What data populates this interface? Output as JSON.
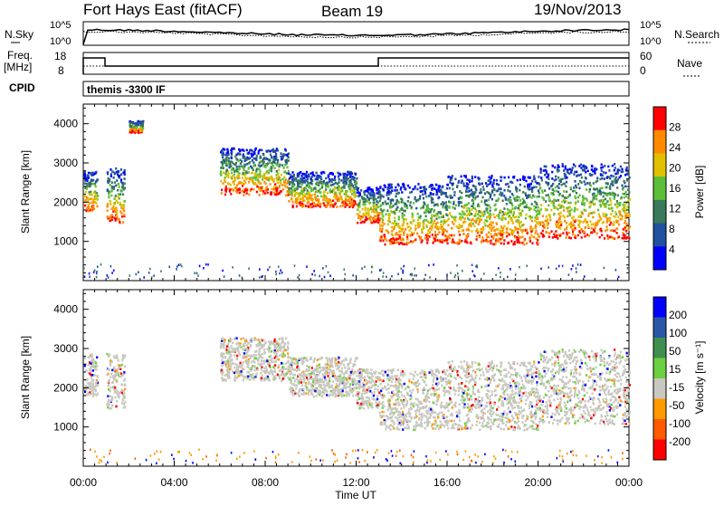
{
  "header": {
    "station": "Fort Hays East (fitACF)",
    "beam": "Beam 19",
    "date": "19/Nov/2013"
  },
  "noise_panel": {
    "left_label": "N.Sky",
    "right_label": "N.Search",
    "left_ticks": [
      "10^5",
      "10^0"
    ],
    "right_ticks": [
      "10^5",
      "10^0"
    ]
  },
  "freq_panel": {
    "left_label_1": "Freq.",
    "left_label_2": "[MHz]",
    "right_label": "Nave",
    "left_ticks": [
      "18",
      "8"
    ],
    "right_ticks": [
      "60",
      "0"
    ]
  },
  "cpid_panel": {
    "label": "CPID",
    "value": "themis -3300 IF"
  },
  "power_panel": {
    "ylabel": "Slant Range [km]",
    "colorbar_label": "Power [dB]",
    "colorbar_ticks": [
      "28",
      "24",
      "20",
      "16",
      "12",
      "8",
      "4"
    ],
    "colors": [
      "#0000ff",
      "#2050a0",
      "#3a7a5a",
      "#5cbf3a",
      "#e0c000",
      "#ff8a00",
      "#ff0000"
    ]
  },
  "velocity_panel": {
    "ylabel": "Slant Range [km]",
    "colorbar_label": "Velocity [m s⁻¹]",
    "colorbar_ticks": [
      "200",
      "100",
      "50",
      "15",
      "-15",
      "-50",
      "-100",
      "-200"
    ],
    "colors": [
      "#0000ff",
      "#2a56a8",
      "#3f8f4f",
      "#6cd040",
      "#c8c8c0",
      "#ff9a00",
      "#ff5a00",
      "#ff0000"
    ]
  },
  "x_axis": {
    "label": "Time UT",
    "ticks": [
      "00:00",
      "04:00",
      "08:00",
      "12:00",
      "16:00",
      "20:00",
      "00:00"
    ]
  },
  "chart_data": [
    {
      "type": "heatmap",
      "name_ref": "power",
      "x_unit": "hours UT",
      "xlim": [
        0,
        24
      ],
      "ylim": [
        0,
        4500
      ],
      "y_ticks": [
        1000,
        2000,
        3000,
        4000
      ],
      "value_unit": "dB",
      "value_range": [
        0,
        30
      ],
      "echo_bands": [
        {
          "x_start": 0.0,
          "x_end": 0.6,
          "y_low": 1800,
          "y_high": 2800
        },
        {
          "x_start": 1.0,
          "x_end": 1.8,
          "y_low": 1500,
          "y_high": 2900
        },
        {
          "x_start": 2.0,
          "x_end": 2.6,
          "y_low": 3800,
          "y_high": 4100
        },
        {
          "x_start": 6.0,
          "x_end": 9.0,
          "y_low": 2200,
          "y_high": 3400
        },
        {
          "x_start": 9.0,
          "x_end": 12.0,
          "y_low": 1900,
          "y_high": 2800
        },
        {
          "x_start": 12.0,
          "x_end": 13.0,
          "y_low": 1500,
          "y_high": 2400
        },
        {
          "x_start": 13.0,
          "x_end": 16.0,
          "y_low": 950,
          "y_high": 2500
        },
        {
          "x_start": 16.0,
          "x_end": 20.0,
          "y_low": 950,
          "y_high": 2700
        },
        {
          "x_start": 20.0,
          "x_end": 24.0,
          "y_low": 1100,
          "y_high": 3000
        }
      ]
    },
    {
      "type": "heatmap",
      "name_ref": "velocity",
      "x_unit": "hours UT",
      "xlim": [
        0,
        24
      ],
      "ylim": [
        0,
        4500
      ],
      "y_ticks": [
        1000,
        2000,
        3000,
        4000
      ],
      "value_unit": "m s-1",
      "value_range": [
        -200,
        200
      ],
      "echo_bands": [
        {
          "x_start": 0.0,
          "x_end": 0.6,
          "y_low": 1800,
          "y_high": 2900
        },
        {
          "x_start": 1.0,
          "x_end": 1.8,
          "y_low": 1500,
          "y_high": 2900
        },
        {
          "x_start": 6.0,
          "x_end": 9.0,
          "y_low": 2200,
          "y_high": 3300
        },
        {
          "x_start": 9.0,
          "x_end": 12.0,
          "y_low": 1800,
          "y_high": 2800
        },
        {
          "x_start": 12.0,
          "x_end": 13.0,
          "y_low": 1500,
          "y_high": 2500
        },
        {
          "x_start": 13.0,
          "x_end": 16.0,
          "y_low": 950,
          "y_high": 2500
        },
        {
          "x_start": 16.0,
          "x_end": 20.0,
          "y_low": 950,
          "y_high": 2700
        },
        {
          "x_start": 20.0,
          "x_end": 24.0,
          "y_low": 1100,
          "y_high": 3000
        }
      ]
    }
  ]
}
